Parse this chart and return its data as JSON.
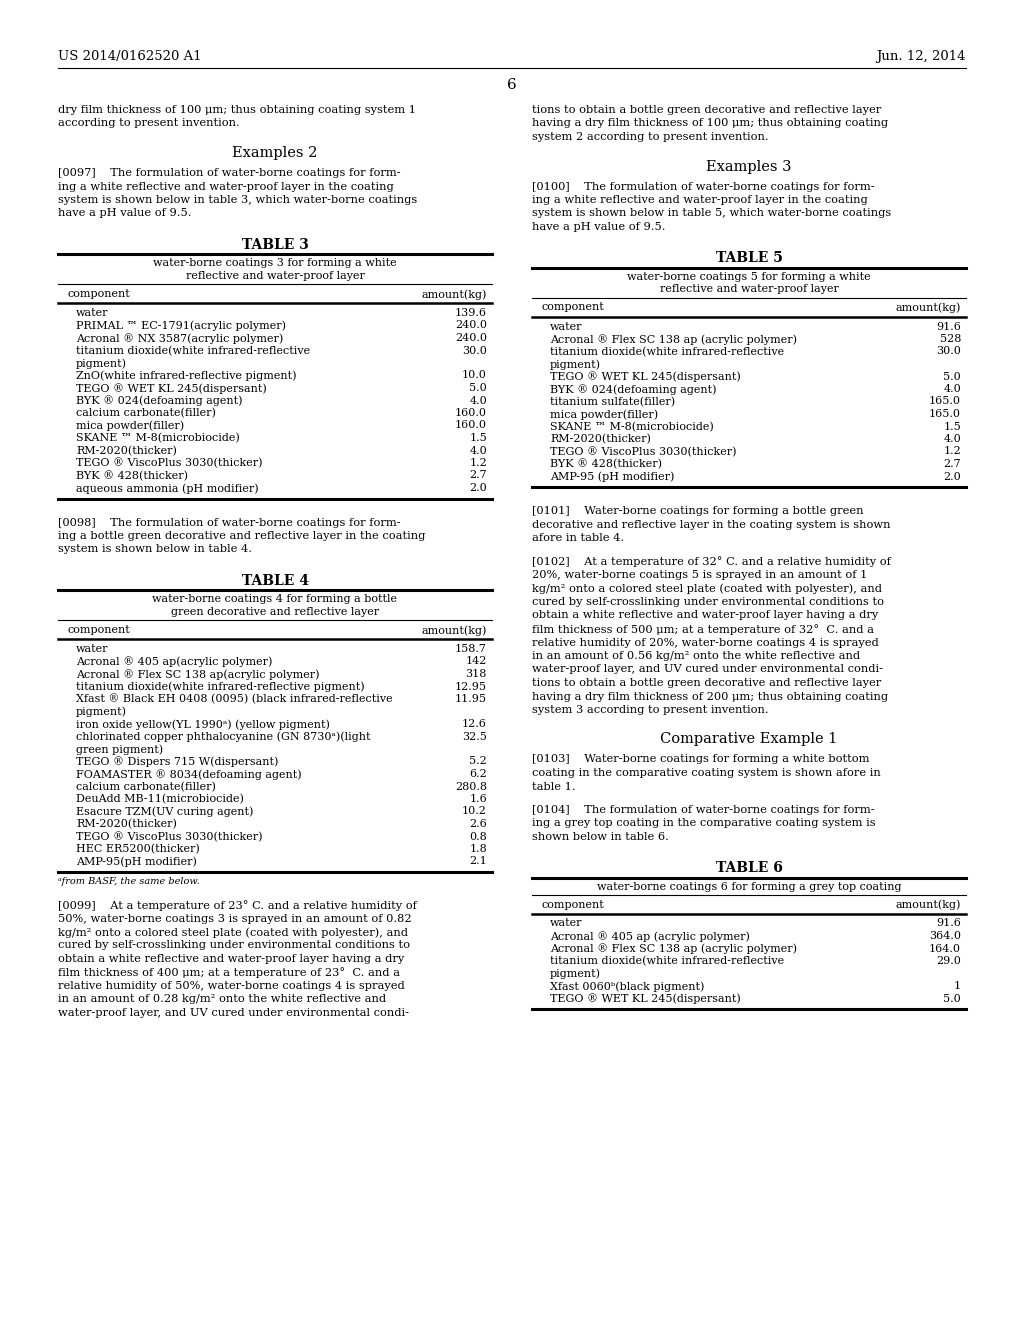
{
  "header_left": "US 2014/0162520 A1",
  "header_right": "Jun. 12, 2014",
  "page_number": "6",
  "background_color": "#ffffff",
  "text_color": "#000000",
  "left_col": {
    "intro_text": "dry film thickness of 100 μm; thus obtaining coating system 1\naccording to present invention.",
    "section_title": "Examples 2",
    "para_0097_lines": [
      "[0097]    The formulation of water-borne coatings for form-",
      "ing a white reflective and water-proof layer in the coating",
      "system is shown below in table 3, which water-borne coatings",
      "have a pH value of 9.5."
    ],
    "table3_title": "TABLE 3",
    "table3_subtitle1": "water-borne coatings 3 for forming a white",
    "table3_subtitle2": "reflective and water-proof layer",
    "table3_col1": "component",
    "table3_col2": "amount(kg)",
    "table3_rows": [
      [
        "water",
        "139.6"
      ],
      [
        "PRIMAL ™ EC-1791(acrylic polymer)",
        "240.0"
      ],
      [
        "Acronal ® NX 3587(acrylic polymer)",
        "240.0"
      ],
      [
        "titanium dioxide(white infrared-reflective",
        "30.0"
      ],
      [
        "pigment)",
        ""
      ],
      [
        "ZnO(white infrared-reflective pigment)",
        "10.0"
      ],
      [
        "TEGO ® WET KL 245(dispersant)",
        "5.0"
      ],
      [
        "BYK ® 024(defoaming agent)",
        "4.0"
      ],
      [
        "calcium carbonate(filler)",
        "160.0"
      ],
      [
        "mica powder(filler)",
        "160.0"
      ],
      [
        "SKANE ™ M-8(microbiocide)",
        "1.5"
      ],
      [
        "RM-2020(thicker)",
        "4.0"
      ],
      [
        "TEGO ® ViscoPlus 3030(thicker)",
        "1.2"
      ],
      [
        "BYK ® 428(thicker)",
        "2.7"
      ],
      [
        "aqueous ammonia (pH modifier)",
        "2.0"
      ]
    ],
    "para_0098_lines": [
      "[0098]    The formulation of water-borne coatings for form-",
      "ing a bottle green decorative and reflective layer in the coating",
      "system is shown below in table 4."
    ],
    "table4_title": "TABLE 4",
    "table4_subtitle1": "water-borne coatings 4 for forming a bottle",
    "table4_subtitle2": "green decorative and reflective layer",
    "table4_col1": "component",
    "table4_col2": "amount(kg)",
    "table4_rows": [
      [
        "water",
        "158.7"
      ],
      [
        "Acronal ® 405 ap(acrylic polymer)",
        "142"
      ],
      [
        "Acronal ® Flex SC 138 ap(acrylic polymer)",
        "318"
      ],
      [
        "titanium dioxide(white infrared-reflective pigment)",
        "12.95"
      ],
      [
        "Xfast ® Black EH 0408 (0095) (black infrared-reflective",
        "11.95"
      ],
      [
        "pigment)",
        ""
      ],
      [
        "iron oxide yellow(YL 1990ᵃ) (yellow pigment)",
        "12.6"
      ],
      [
        "chlorinated copper phthalocyanine (GN 8730ᵃ)(light",
        "32.5"
      ],
      [
        "green pigment)",
        ""
      ],
      [
        "TEGO ® Dispers 715 W(dispersant)",
        "5.2"
      ],
      [
        "FOAMASTER ® 8034(defoaming agent)",
        "6.2"
      ],
      [
        "calcium carbonate(filler)",
        "280.8"
      ],
      [
        "DeuAdd MB-11(microbiocide)",
        "1.6"
      ],
      [
        "Esacure TZM(UV curing agent)",
        "10.2"
      ],
      [
        "RM-2020(thicker)",
        "2.6"
      ],
      [
        "TEGO ® ViscoPlus 3030(thicker)",
        "0.8"
      ],
      [
        "HEC ER5200(thicker)",
        "1.8"
      ],
      [
        "AMP-95(pH modifier)",
        "2.1"
      ]
    ],
    "table4_footnote": "ᵃfrom BASF, the same below.",
    "para_0099_lines": [
      "[0099]    At a temperature of 23° C. and a relative humidity of",
      "50%, water-borne coatings 3 is sprayed in an amount of 0.82",
      "kg/m² onto a colored steel plate (coated with polyester), and",
      "cured by self-crosslinking under environmental conditions to",
      "obtain a white reflective and water-proof layer having a dry",
      "film thickness of 400 μm; at a temperature of 23°  C. and a",
      "relative humidity of 50%, water-borne coatings 4 is sprayed",
      "in an amount of 0.28 kg/m² onto the white reflective and",
      "water-proof layer, and UV cured under environmental condi-"
    ]
  },
  "right_col": {
    "intro_text_lines": [
      "tions to obtain a bottle green decorative and reflective layer",
      "having a dry film thickness of 100 μm; thus obtaining coating",
      "system 2 according to present invention."
    ],
    "section_title": "Examples 3",
    "para_0100_lines": [
      "[0100]    The formulation of water-borne coatings for form-",
      "ing a white reflective and water-proof layer in the coating",
      "system is shown below in table 5, which water-borne coatings",
      "have a pH value of 9.5."
    ],
    "table5_title": "TABLE 5",
    "table5_subtitle1": "water-borne coatings 5 for forming a white",
    "table5_subtitle2": "reflective and water-proof layer",
    "table5_col1": "component",
    "table5_col2": "amount(kg)",
    "table5_rows": [
      [
        "water",
        "91.6"
      ],
      [
        "Acronal ® Flex SC 138 ap (acrylic polymer)",
        "528"
      ],
      [
        "titanium dioxide(white infrared-reflective",
        "30.0"
      ],
      [
        "pigment)",
        ""
      ],
      [
        "TEGO ® WET KL 245(dispersant)",
        "5.0"
      ],
      [
        "BYK ® 024(defoaming agent)",
        "4.0"
      ],
      [
        "titanium sulfate(filler)",
        "165.0"
      ],
      [
        "mica powder(filler)",
        "165.0"
      ],
      [
        "SKANE ™ M-8(microbiocide)",
        "1.5"
      ],
      [
        "RM-2020(thicker)",
        "4.0"
      ],
      [
        "TEGO ® ViscoPlus 3030(thicker)",
        "1.2"
      ],
      [
        "BYK ® 428(thicker)",
        "2.7"
      ],
      [
        "AMP-95 (pH modifier)",
        "2.0"
      ]
    ],
    "para_0101_lines": [
      "[0101]    Water-borne coatings for forming a bottle green",
      "decorative and reflective layer in the coating system is shown",
      "afore in table 4."
    ],
    "para_0102_lines": [
      "[0102]    At a temperature of 32° C. and a relative humidity of",
      "20%, water-borne coatings 5 is sprayed in an amount of 1",
      "kg/m² onto a colored steel plate (coated with polyester), and",
      "cured by self-crosslinking under environmental conditions to",
      "obtain a white reflective and water-proof layer having a dry",
      "film thickness of 500 μm; at a temperature of 32°  C. and a",
      "relative humidity of 20%, water-borne coatings 4 is sprayed",
      "in an amount of 0.56 kg/m² onto the white reflective and",
      "water-proof layer, and UV cured under environmental condi-",
      "tions to obtain a bottle green decorative and reflective layer",
      "having a dry film thickness of 200 μm; thus obtaining coating",
      "system 3 according to present invention."
    ],
    "comp_ex1_title": "Comparative Example 1",
    "para_0103_lines": [
      "[0103]    Water-borne coatings for forming a white bottom",
      "coating in the comparative coating system is shown afore in",
      "table 1."
    ],
    "para_0104_lines": [
      "[0104]    The formulation of water-borne coatings for form-",
      "ing a grey top coating in the comparative coating system is",
      "shown below in table 6."
    ],
    "table6_title": "TABLE 6",
    "table6_subtitle1": "water-borne coatings 6 for forming a grey top coating",
    "table6_col1": "component",
    "table6_col2": "amount(kg)",
    "table6_rows": [
      [
        "water",
        "91.6"
      ],
      [
        "Acronal ® 405 ap (acrylic polymer)",
        "364.0"
      ],
      [
        "Acronal ® Flex SC 138 ap (acrylic polymer)",
        "164.0"
      ],
      [
        "titanium dioxide(white infrared-reflective",
        "29.0"
      ],
      [
        "pigment)",
        ""
      ],
      [
        "Xfast 0060ᵇ(black pigment)",
        "1"
      ],
      [
        "TEGO ® WET KL 245(dispersant)",
        "5.0"
      ]
    ]
  }
}
